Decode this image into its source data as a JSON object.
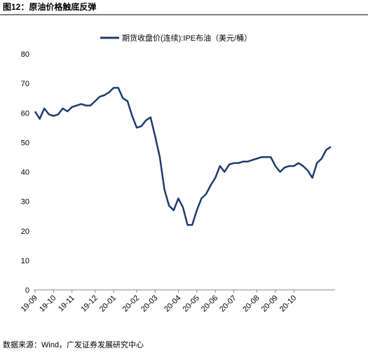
{
  "title": "图12：原油价格触底反弹",
  "source": "数据来源：Wind，广发证券发展研究中心",
  "chart_data": {
    "type": "line",
    "categories": [
      "19-09",
      null,
      null,
      null,
      "19-10",
      null,
      null,
      null,
      "19-11",
      null,
      null,
      null,
      null,
      "19-12",
      null,
      null,
      null,
      "20-01",
      null,
      null,
      null,
      null,
      "20-02",
      null,
      null,
      null,
      "20-03",
      null,
      null,
      null,
      null,
      "20-04",
      null,
      null,
      null,
      "20-05",
      null,
      null,
      null,
      "20-06",
      null,
      null,
      null,
      "20-07",
      null,
      null,
      null,
      null,
      "20-08",
      null,
      null,
      null,
      "20-09",
      null,
      null,
      null,
      "20-10",
      null,
      null,
      null,
      null,
      null,
      null,
      null,
      null
    ],
    "series": [
      {
        "name": "期货收盘价(连续):IPE布油（美元/桶）",
        "color": "#1f3b6e",
        "values": [
          60.5,
          58.0,
          61.5,
          59.5,
          59.0,
          59.5,
          61.5,
          60.5,
          62.0,
          62.5,
          63.0,
          62.5,
          62.5,
          64.0,
          65.5,
          66.0,
          67.0,
          68.5,
          68.5,
          65.0,
          64.0,
          59.0,
          55.0,
          55.5,
          57.5,
          58.5,
          52.0,
          45.0,
          34.0,
          28.5,
          27.0,
          31.0,
          28.0,
          22.0,
          22.0,
          27.0,
          31.0,
          32.5,
          35.5,
          38.0,
          42.0,
          40.0,
          42.5,
          43.0,
          43.0,
          43.5,
          43.5,
          44.0,
          44.5,
          45.0,
          45.0,
          45.0,
          42.0,
          40.0,
          41.5,
          42.0,
          42.0,
          43.0,
          42.0,
          40.5,
          38.0,
          43.0,
          44.5,
          47.5,
          48.5
        ]
      }
    ],
    "ylim": [
      0,
      80
    ],
    "yticks": [
      0,
      10,
      20,
      30,
      40,
      50,
      60,
      70,
      80
    ],
    "legend": "top",
    "grid": false
  }
}
